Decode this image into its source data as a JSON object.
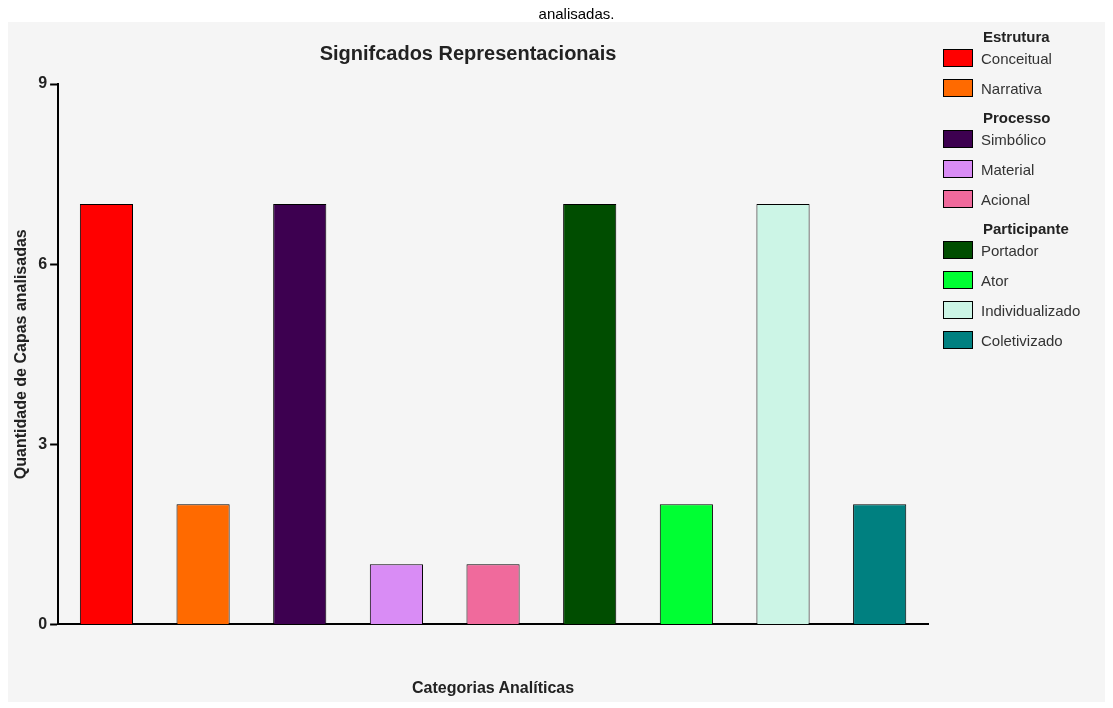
{
  "chart_data": {
    "type": "bar",
    "title": "Signifcados Representacionais",
    "xlabel": "Categorias Analíticas",
    "ylabel": "Quantidade de Capas analisadas",
    "annotations": [
      "analisadas.",
      "Estrutura",
      "Processo",
      "Participante"
    ],
    "categories": [
      null,
      null,
      null,
      null,
      null,
      null,
      null,
      null,
      null
    ],
    "series": [
      {
        "name": "Conceitual",
        "color": "#ff0000",
        "values": [
          7,
          null,
          null,
          null,
          null,
          null,
          null,
          null,
          null
        ]
      },
      {
        "name": "Narrativa",
        "color": "#ff6a00",
        "values": [
          null,
          2,
          null,
          null,
          null,
          null,
          null,
          null,
          null
        ]
      },
      {
        "name": "Simbólico",
        "color": "#3d0050",
        "values": [
          null,
          null,
          7,
          null,
          null,
          null,
          null,
          null,
          null
        ]
      },
      {
        "name": "Material",
        "color": "#d98cf5",
        "values": [
          null,
          null,
          null,
          1,
          null,
          null,
          null,
          null,
          null
        ]
      },
      {
        "name": "Acional",
        "color": "#f06a9c",
        "values": [
          null,
          null,
          null,
          null,
          1,
          null,
          null,
          null,
          null
        ]
      },
      {
        "name": "Portador",
        "color": "#004d00",
        "values": [
          null,
          null,
          null,
          null,
          null,
          7,
          null,
          null,
          null
        ]
      },
      {
        "name": "Ator",
        "color": "#00ff33",
        "values": [
          null,
          null,
          null,
          null,
          null,
          null,
          2,
          null,
          null
        ]
      },
      {
        "name": "Individualizado",
        "color": "#ccf5e6",
        "values": [
          null,
          null,
          null,
          null,
          null,
          null,
          null,
          7,
          null
        ]
      },
      {
        "name": "Coletivizado",
        "color": "#008080",
        "values": [
          null,
          null,
          null,
          null,
          null,
          null,
          null,
          null,
          2
        ]
      }
    ],
    "ylim": [
      0,
      9
    ],
    "yticks": [
      0,
      3,
      6,
      9
    ],
    "grid": false,
    "legend": "right"
  }
}
